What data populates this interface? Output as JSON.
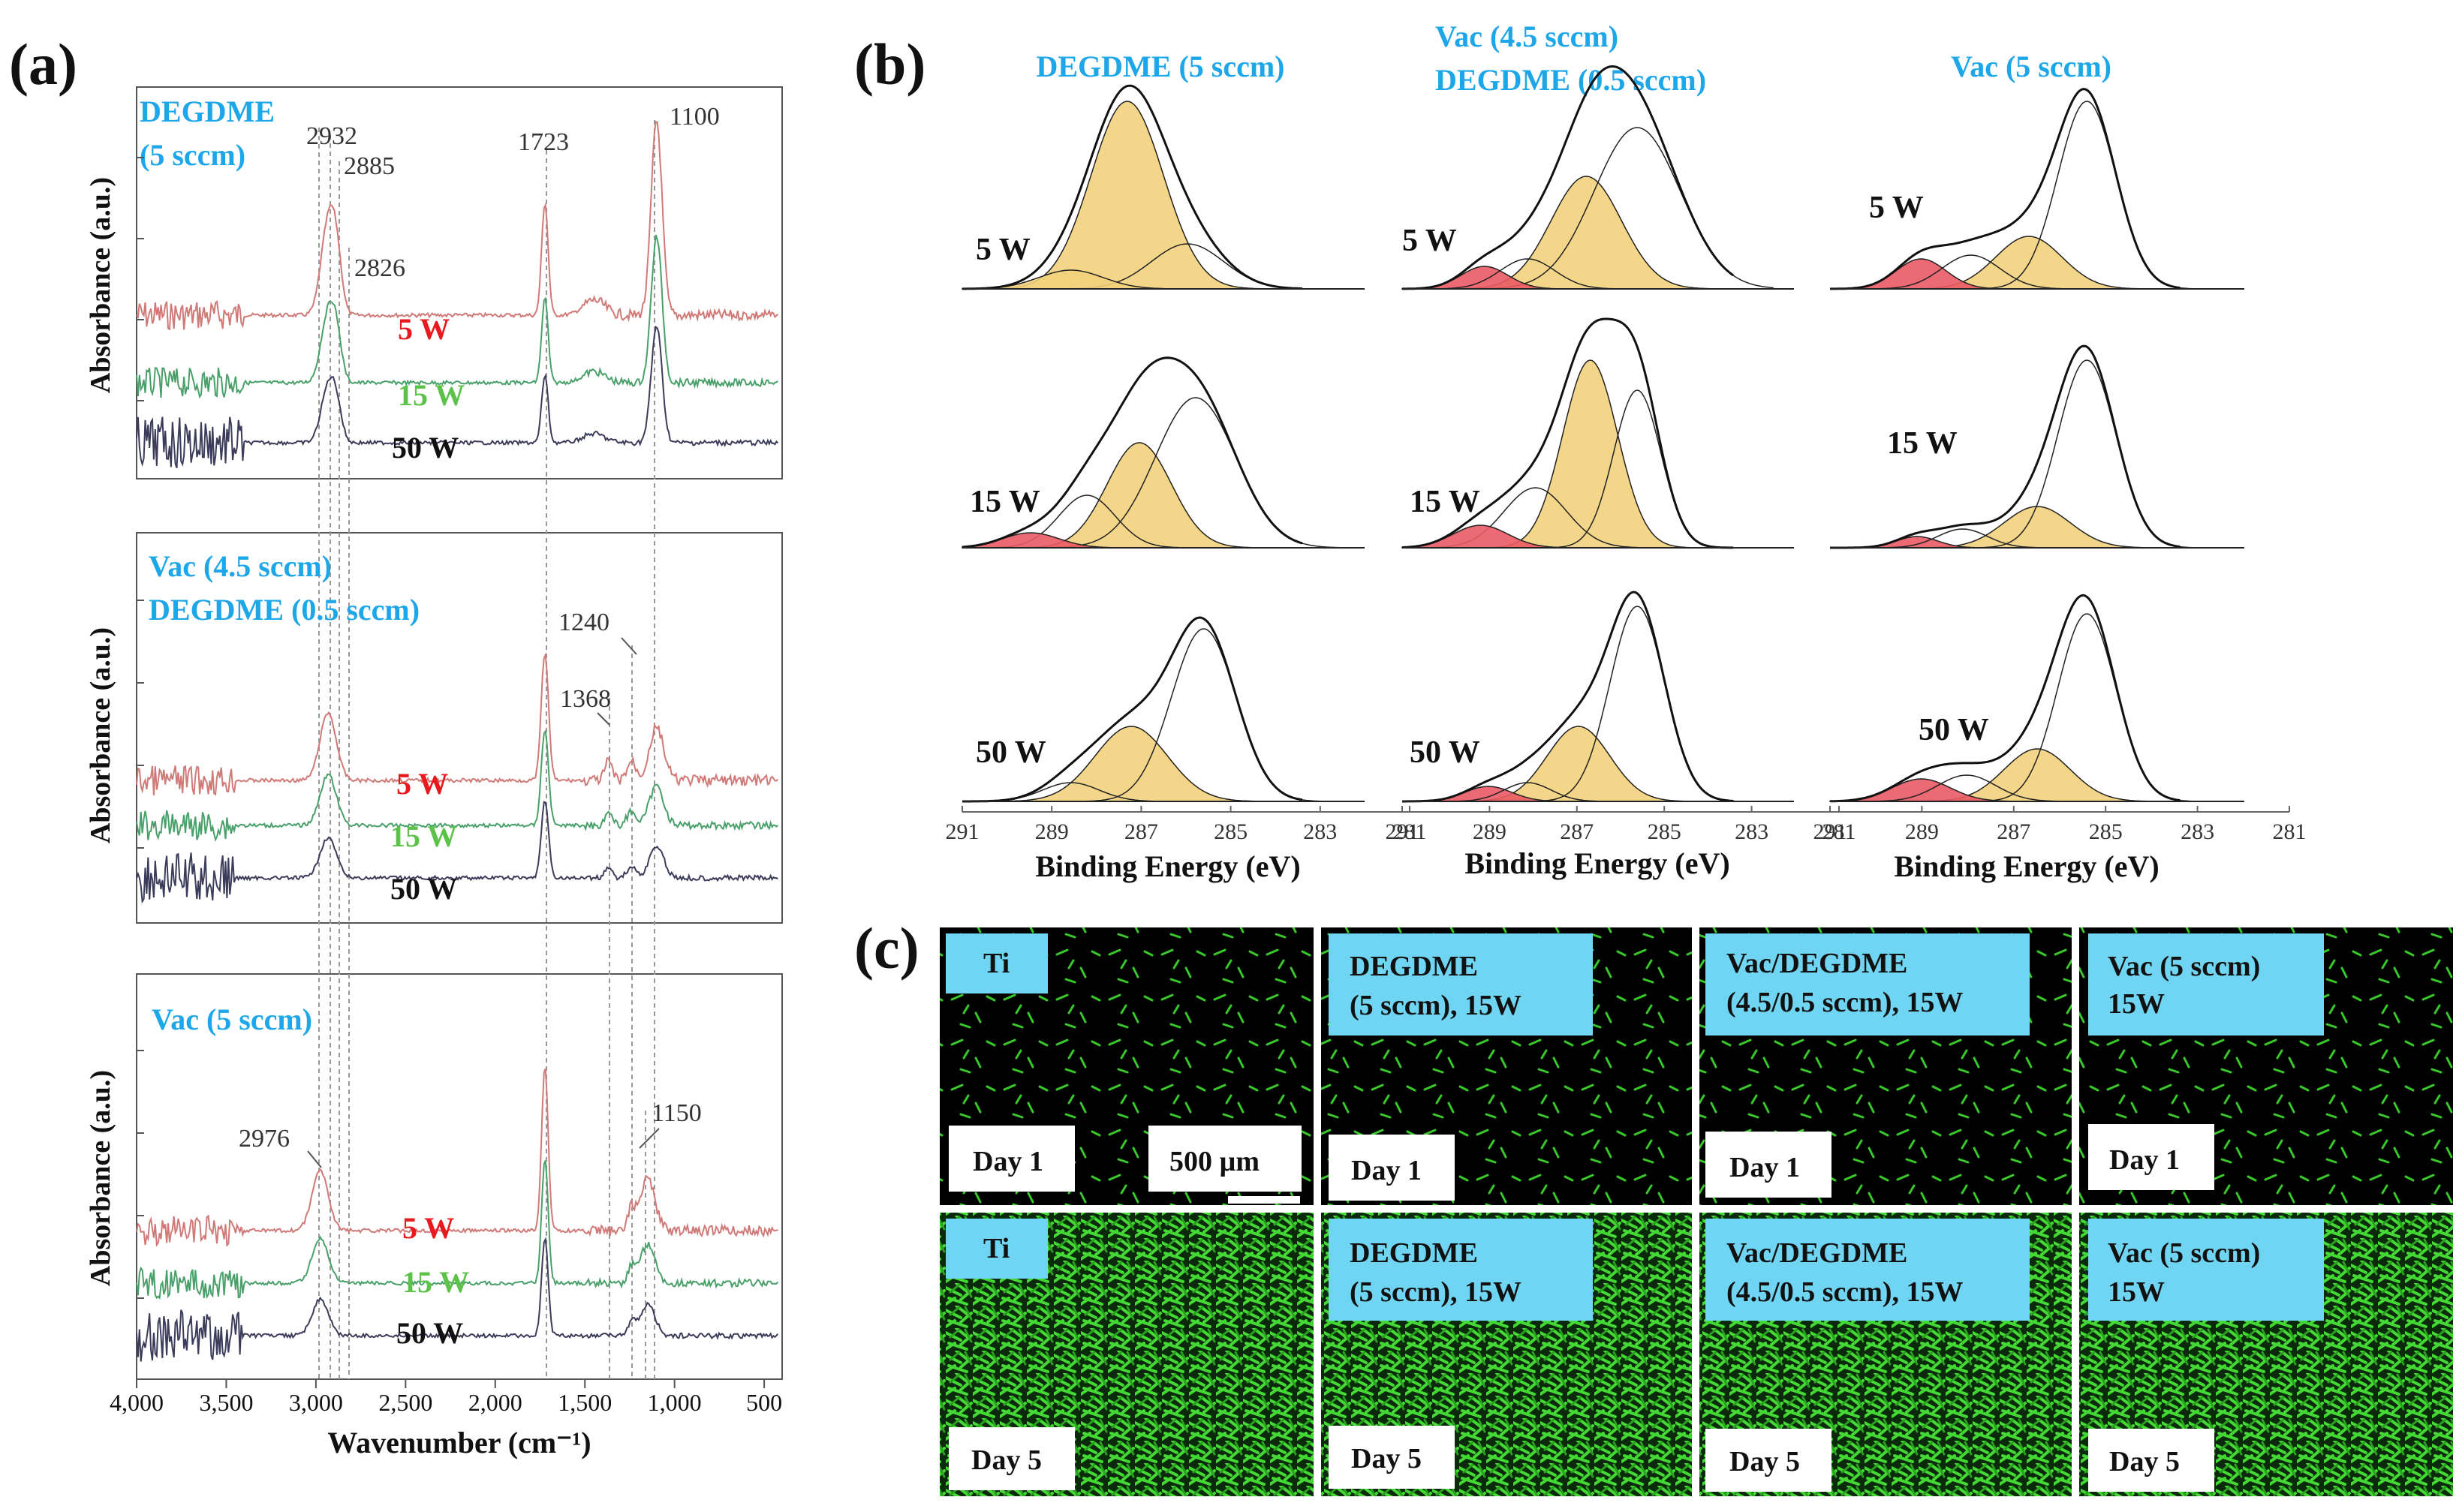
{
  "panel_labels": {
    "a": "(a)",
    "b": "(b)",
    "c": "(c)"
  },
  "colors": {
    "cyan": "#1ea7e8",
    "red": "#e8191f",
    "green": "#5dc24a",
    "black": "#111111",
    "ftir_red": "#d07a78",
    "ftir_green": "#4aa06a",
    "ftir_black": "#3c3c5a",
    "fill_yellow": "#f2d27c",
    "fill_red": "#ea5a64",
    "label_box": "#6fd5f2",
    "cell_green": "#3ecf2e"
  },
  "chart_data": [
    {
      "type": "line",
      "panel": "a",
      "title": "DEGDME\n(5 sccm)",
      "title_lines": [
        "DEGDME",
        "(5 sccm)"
      ],
      "xlabel": "Wavenumber (cm⁻¹)",
      "ylabel": "Absorbance (a.u.)",
      "xlim": [
        4000,
        400
      ],
      "x_ticks": [
        "4,000",
        "3,500",
        "3,000",
        "2,500",
        "2,000",
        "1,500",
        "1,000",
        "500"
      ],
      "series": [
        {
          "name": "5 W",
          "color": "#e8191f"
        },
        {
          "name": "15 W",
          "color": "#5dc24a"
        },
        {
          "name": "50 W",
          "color": "#111111"
        }
      ],
      "peaks": [
        "2932",
        "2885",
        "2826",
        "1723",
        "1100"
      ]
    },
    {
      "type": "line",
      "panel": "a",
      "title": "Vac (4.5 sccm)\nDEGDME (0.5 sccm)",
      "title_lines": [
        "Vac (4.5 sccm)",
        "DEGDME (0.5 sccm)"
      ],
      "xlabel": "",
      "ylabel": "Absorbance (a.u.)",
      "series": [
        {
          "name": "5 W",
          "color": "#e8191f"
        },
        {
          "name": "15 W",
          "color": "#5dc24a"
        },
        {
          "name": "50 W",
          "color": "#111111"
        }
      ],
      "peaks": [
        "1240",
        "1368"
      ]
    },
    {
      "type": "line",
      "panel": "a",
      "title": "Vac (5 sccm)",
      "title_lines": [
        "Vac (5 sccm)"
      ],
      "xlabel": "Wavenumber (cm⁻¹)",
      "ylabel": "Absorbance (a.u.)",
      "series": [
        {
          "name": "5 W",
          "color": "#e8191f"
        },
        {
          "name": "15 W",
          "color": "#5dc24a"
        },
        {
          "name": "50 W",
          "color": "#111111"
        }
      ],
      "peaks": [
        "2976",
        "1150"
      ]
    },
    {
      "type": "area",
      "panel": "b",
      "xlabel": "Binding Energy (eV)",
      "xlim": [
        291,
        281
      ],
      "x_ticks": [
        "291",
        "289",
        "287",
        "285",
        "283",
        "281"
      ],
      "columns": [
        {
          "title_lines": [
            "DEGDME (5 sccm)"
          ]
        },
        {
          "title_lines": [
            "Vac (4.5 sccm)",
            "DEGDME (0.5 sccm)"
          ]
        },
        {
          "title_lines": [
            "Vac (5 sccm)"
          ]
        }
      ],
      "rows": [
        "5 W",
        "15 W",
        "50 W"
      ]
    }
  ],
  "micrographs": {
    "columns": [
      {
        "label": [
          "Ti"
        ]
      },
      {
        "label": [
          "DEGDME",
          "(5 sccm), 15W"
        ]
      },
      {
        "label": [
          "Vac/DEGDME",
          "(4.5/0.5 sccm), 15W"
        ]
      },
      {
        "label": [
          "Vac (5 sccm)",
          "15W"
        ]
      }
    ],
    "day_labels": [
      "Day 1",
      "Day 5"
    ],
    "scale_bar": "500 µm"
  }
}
